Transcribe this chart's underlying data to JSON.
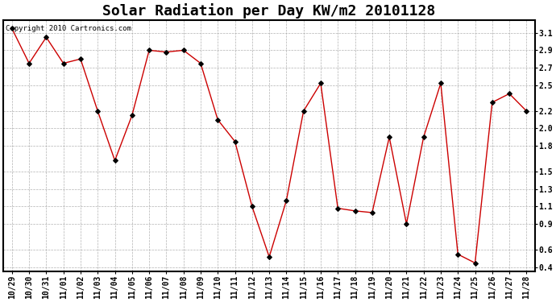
{
  "title": "Solar Radiation per Day KW/m2 20101128",
  "copyright_text": "Copyright 2010 Cartronics.com",
  "labels": [
    "10/29",
    "10/30",
    "10/31",
    "11/01",
    "11/02",
    "11/03",
    "11/04",
    "11/05",
    "11/06",
    "11/07",
    "11/08",
    "11/09",
    "11/10",
    "11/11",
    "11/12",
    "11/13",
    "11/14",
    "11/15",
    "11/16",
    "11/17",
    "11/18",
    "11/19",
    "11/20",
    "11/21",
    "11/22",
    "11/23",
    "11/24",
    "11/25",
    "11/26",
    "11/27",
    "11/28"
  ],
  "values": [
    3.15,
    2.75,
    3.05,
    2.75,
    2.8,
    2.2,
    1.63,
    2.15,
    2.9,
    2.88,
    2.9,
    2.75,
    2.1,
    1.85,
    1.1,
    0.52,
    1.17,
    2.2,
    2.52,
    1.08,
    1.05,
    1.03,
    1.9,
    0.9,
    1.9,
    2.52,
    0.55,
    0.45,
    2.3,
    2.4,
    2.2
  ],
  "line_color": "#cc0000",
  "marker": "D",
  "marker_size": 3,
  "marker_color": "#000000",
  "background_color": "#ffffff",
  "plot_bg_color": "#ffffff",
  "grid_color": "#aaaaaa",
  "ylim": [
    0.35,
    3.25
  ],
  "yticks": [
    0.4,
    0.6,
    0.9,
    1.1,
    1.3,
    1.5,
    1.8,
    2.0,
    2.2,
    2.5,
    2.7,
    2.9,
    3.1
  ],
  "title_fontsize": 13,
  "tick_fontsize": 7,
  "copyright_fontsize": 6.5
}
